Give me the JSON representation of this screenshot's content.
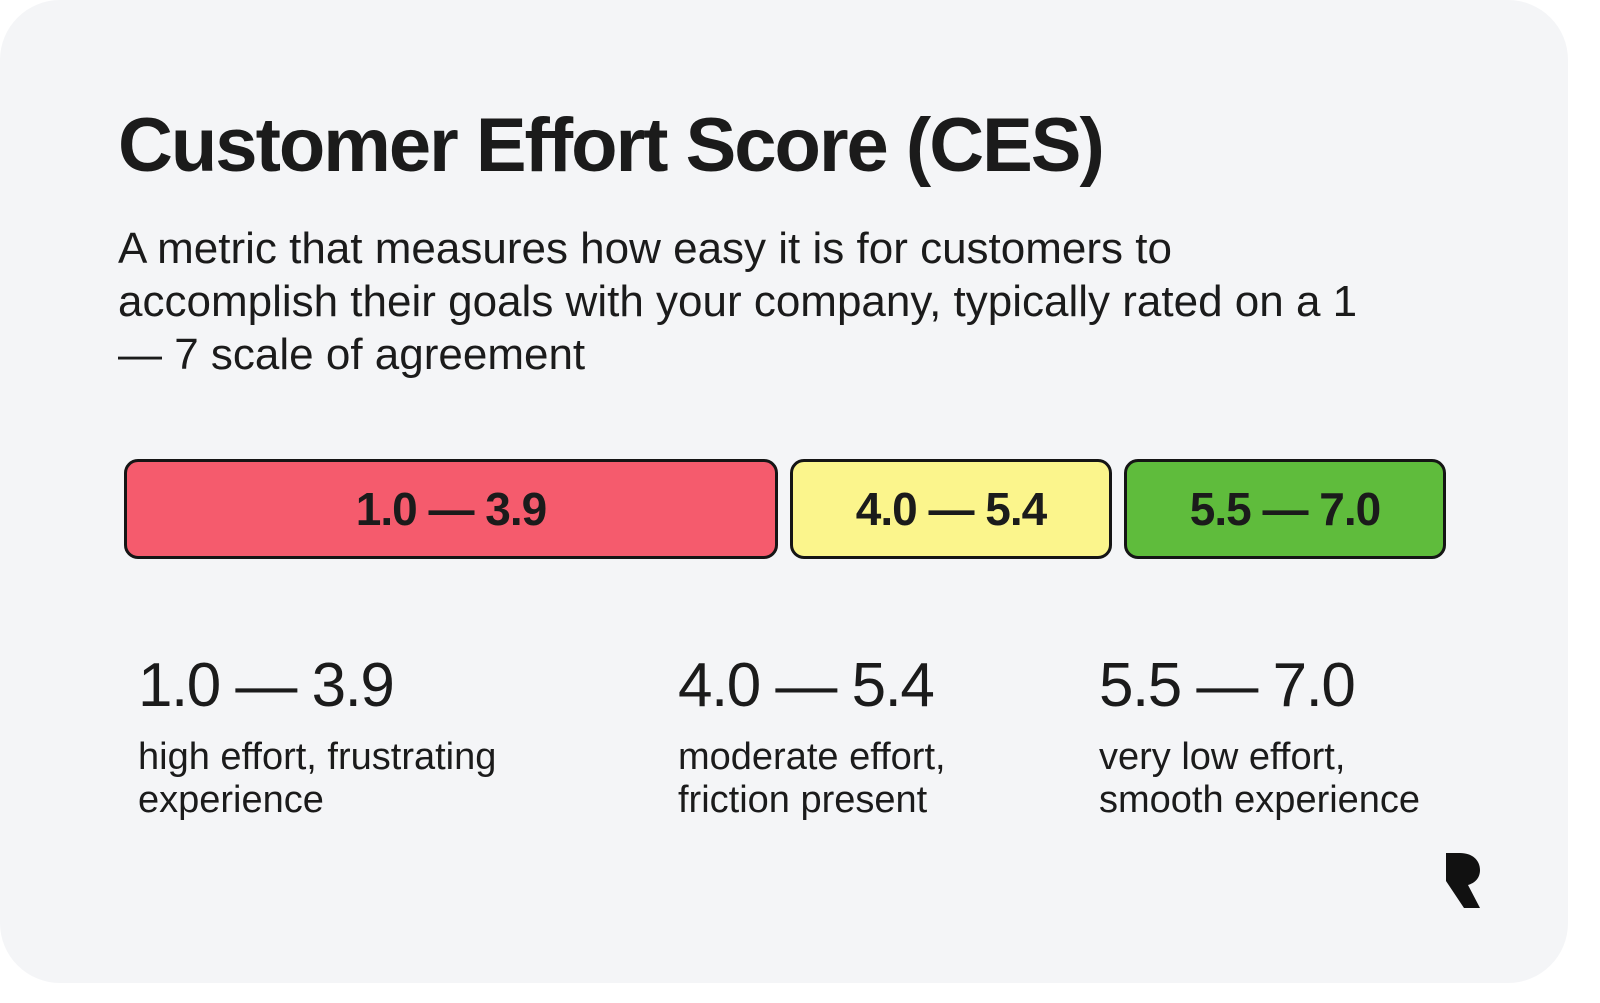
{
  "title": "Customer Effort Score (CES)",
  "description": "A metric that measures how easy it is for customers to accomplish their goals with your company, typically rated on a 1 — 7 scale of agreement",
  "scale": {
    "segments": [
      {
        "label": "1.0 — 3.9",
        "min": 1.0,
        "max": 3.9,
        "color": "#f55b6d"
      },
      {
        "label": "4.0 — 5.4",
        "min": 4.0,
        "max": 5.4,
        "color": "#fbf58c"
      },
      {
        "label": "5.5 — 7.0",
        "min": 5.5,
        "max": 7.0,
        "color": "#5fbc3c"
      }
    ]
  },
  "legend": [
    {
      "range": "1.0 — 3.9",
      "description": "high effort, frustrating experience"
    },
    {
      "range": "4.0 — 5.4",
      "description": "moderate effort, friction present"
    },
    {
      "range": "5.5 — 7.0",
      "description": "very low effort, smooth experience"
    }
  ],
  "logo": {
    "icon": "r-logo-icon"
  }
}
